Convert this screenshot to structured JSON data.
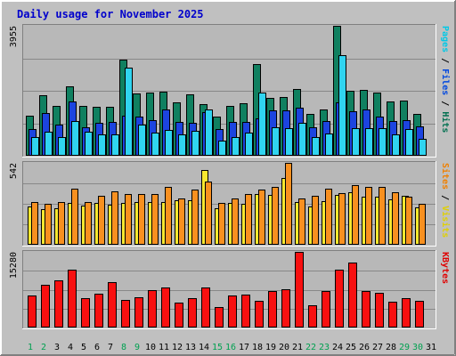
{
  "chart_data": {
    "type": "bar",
    "title": "Daily usage for November 2025",
    "x": [
      "1",
      "2",
      "3",
      "4",
      "5",
      "6",
      "7",
      "8",
      "9",
      "10",
      "11",
      "12",
      "13",
      "14",
      "15",
      "16",
      "17",
      "18",
      "19",
      "20",
      "21",
      "22",
      "23",
      "24",
      "25",
      "26",
      "27",
      "28",
      "29",
      "30",
      "31"
    ],
    "weekend_days": [
      "1",
      "2",
      "8",
      "9",
      "15",
      "16",
      "22",
      "23",
      "29",
      "30"
    ],
    "panels": [
      {
        "id": "top",
        "max_label": "3955",
        "ymax": 3955,
        "legend": [
          {
            "text": "Pages",
            "color": "#00c8e6"
          },
          {
            "text": " / ",
            "color": "#000000"
          },
          {
            "text": "Files",
            "color": "#0048e0"
          },
          {
            "text": " / ",
            "color": "#000000"
          },
          {
            "text": "Hits",
            "color": "#007050"
          }
        ],
        "series": [
          {
            "name": "Hits",
            "color": "#108060",
            "values": [
              1220,
              1830,
              1510,
              2110,
              1510,
              1490,
              1500,
              2930,
              1890,
              1910,
              1940,
              1630,
              1870,
              1580,
              1200,
              1530,
              1610,
              2780,
              1760,
              1800,
              2020,
              1260,
              1410,
              3955,
              1990,
              2010,
              1910,
              1660,
              1690,
              1280,
              0
            ]
          },
          {
            "name": "Files",
            "color": "#1c44e0",
            "values": [
              820,
              1300,
              960,
              1660,
              880,
              1010,
              1040,
              1220,
              1190,
              1090,
              1410,
              1040,
              1000,
              1330,
              820,
              1030,
              1040,
              1140,
              1390,
              1390,
              1470,
              860,
              1050,
              1630,
              1360,
              1420,
              1180,
              1050,
              1090,
              890,
              0
            ]
          },
          {
            "name": "Pages",
            "color": "#30d4f0",
            "values": [
              580,
              730,
              560,
              1060,
              740,
              650,
              660,
              2690,
              950,
              700,
              790,
              660,
              770,
              1400,
              450,
              580,
              700,
              1910,
              860,
              830,
              1000,
              570,
              670,
              3050,
              840,
              850,
              830,
              640,
              810,
              520,
              0
            ]
          }
        ]
      },
      {
        "id": "mid",
        "max_label": "542",
        "ymax": 542,
        "legend": [
          {
            "text": "Sites",
            "color": "#f08000"
          },
          {
            "text": " / ",
            "color": "#000000"
          },
          {
            "text": "Visits",
            "color": "#e0d000"
          }
        ],
        "series": [
          {
            "name": "Visits",
            "color": "#f8e830",
            "values": [
              255,
              235,
              240,
              275,
              260,
              275,
              265,
              275,
              285,
              280,
              285,
              295,
              295,
              495,
              240,
              275,
              270,
              335,
              330,
              440,
              285,
              255,
              290,
              330,
              345,
              320,
              320,
              300,
              325,
              250,
              0
            ]
          },
          {
            "name": "Sites",
            "color": "#f89020",
            "values": [
              280,
              270,
              285,
              370,
              285,
              325,
              355,
              335,
              335,
              335,
              380,
              305,
              365,
              420,
              275,
              305,
              335,
              365,
              385,
              542,
              305,
              325,
              370,
              340,
              395,
              385,
              385,
              345,
              320,
              270,
              0
            ]
          }
        ]
      },
      {
        "id": "bot",
        "max_label": "15280",
        "ymax": 15280,
        "legend": [
          {
            "text": "KBytes",
            "color": "#e00000"
          }
        ],
        "series": [
          {
            "name": "KBytes",
            "color": "#f81010",
            "values": [
              6400,
              8600,
              9500,
              11600,
              5900,
              6900,
              9100,
              5600,
              6200,
              7600,
              8100,
              5100,
              5900,
              8000,
              4100,
              6500,
              6600,
              5400,
              7400,
              7800,
              15280,
              4500,
              7400,
              11700,
              13100,
              7300,
              7000,
              5300,
              5900,
              5400,
              0
            ]
          }
        ]
      }
    ]
  }
}
